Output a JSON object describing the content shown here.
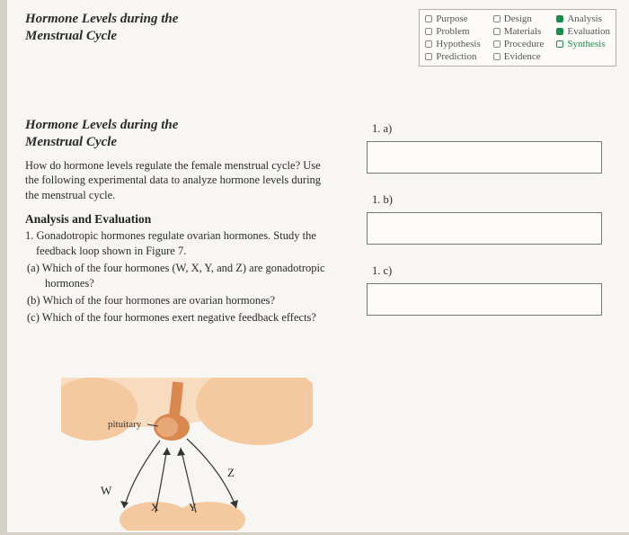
{
  "header": {
    "title_line1": "Hormone Levels during the",
    "title_line2": "Menstrual Cycle"
  },
  "checklist": {
    "col1": [
      {
        "label": "Purpose",
        "filled": false
      },
      {
        "label": "Problem",
        "filled": false
      },
      {
        "label": "Hypothesis",
        "filled": false
      },
      {
        "label": "Prediction",
        "filled": false
      }
    ],
    "col2": [
      {
        "label": "Design",
        "filled": false
      },
      {
        "label": "Materials",
        "filled": false
      },
      {
        "label": "Procedure",
        "filled": false
      },
      {
        "label": "Evidence",
        "filled": false
      }
    ],
    "col3": [
      {
        "label": "Analysis",
        "filled": true
      },
      {
        "label": "Evaluation",
        "filled": true
      },
      {
        "label": "Synthesis",
        "filled": false,
        "synth": true
      }
    ]
  },
  "subtitle": {
    "line1": "Hormone Levels during the",
    "line2": "Menstrual Cycle"
  },
  "intro": "How do hormone levels regulate the female menstrual cycle? Use the following experimental data to analyze hormone levels during the menstrual cycle.",
  "section": "Analysis and Evaluation",
  "q1_lead": "1.  Gonadotropic hormones regulate ovarian hormones. Study the feedback loop shown in Figure 7.",
  "q1a": "(a)  Which of the four hormones (W, X, Y, and Z) are gonadotropic hormones?",
  "q1b": "(b)  Which of the four hormones are ovarian hormones?",
  "q1c": "(c)  Which of the four hormones exert negative feedback effects?",
  "answers": {
    "a": "1. a)",
    "b": "1. b)",
    "c": "1. c)"
  },
  "diagram": {
    "pituitary_label": "pituitary",
    "W": "W",
    "X": "X",
    "Y": "Y",
    "Z": "Z",
    "colors": {
      "organ_fill": "#f5c9a0",
      "organ_shadow": "#e0a574",
      "pituitary": "#d98850",
      "bg_shape": "#f7dcc0"
    }
  }
}
